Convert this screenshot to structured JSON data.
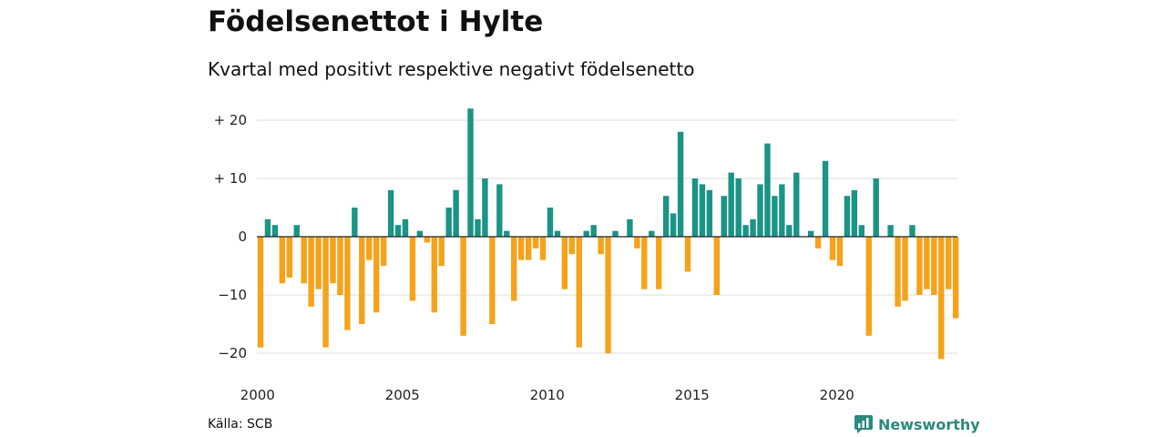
{
  "title": "Födelsenettot i Hylte",
  "subtitle": "Kvartal med positivt respektive negativt födelsenetto",
  "source": "Källa: SCB",
  "brand": "Newsworthy",
  "colors": {
    "positive": "#1a9485",
    "negative": "#f6a21a",
    "grid": "#dddddd",
    "zero": "#222222"
  },
  "chart_data": {
    "type": "bar",
    "ylim": [
      -22,
      23
    ],
    "y_ticks": [
      {
        "value": 20,
        "label": "+ 20"
      },
      {
        "value": 10,
        "label": "+ 10"
      },
      {
        "value": 0,
        "label": "0"
      },
      {
        "value": -10,
        "label": "−10"
      },
      {
        "value": -20,
        "label": "−20"
      }
    ],
    "x_ticks": [
      {
        "value": 2000,
        "label": "2000"
      },
      {
        "value": 2005,
        "label": "2005"
      },
      {
        "value": 2010,
        "label": "2010"
      },
      {
        "value": 2015,
        "label": "2015"
      },
      {
        "value": 2020,
        "label": "2020"
      }
    ],
    "x_start": 2000,
    "values": [
      -19,
      3,
      2,
      -8,
      -7,
      2,
      -8,
      -12,
      -9,
      -19,
      -8,
      -10,
      -16,
      5,
      -15,
      -4,
      -13,
      -5,
      8,
      2,
      3,
      -11,
      1,
      -1,
      -13,
      -5,
      5,
      8,
      -17,
      22,
      3,
      10,
      -15,
      9,
      1,
      -11,
      -4,
      -4,
      -2,
      -4,
      5,
      1,
      -9,
      -3,
      -19,
      1,
      2,
      -3,
      -20,
      1,
      0,
      3,
      -2,
      -9,
      1,
      -9,
      7,
      4,
      18,
      -6,
      10,
      9,
      8,
      -10,
      7,
      11,
      10,
      2,
      3,
      9,
      16,
      7,
      9,
      2,
      11,
      0,
      1,
      -2,
      13,
      -4,
      -5,
      7,
      8,
      2,
      -17,
      10,
      0,
      2,
      -12,
      -11,
      2,
      -10,
      -9,
      -10,
      -21,
      -9,
      -14
    ]
  }
}
